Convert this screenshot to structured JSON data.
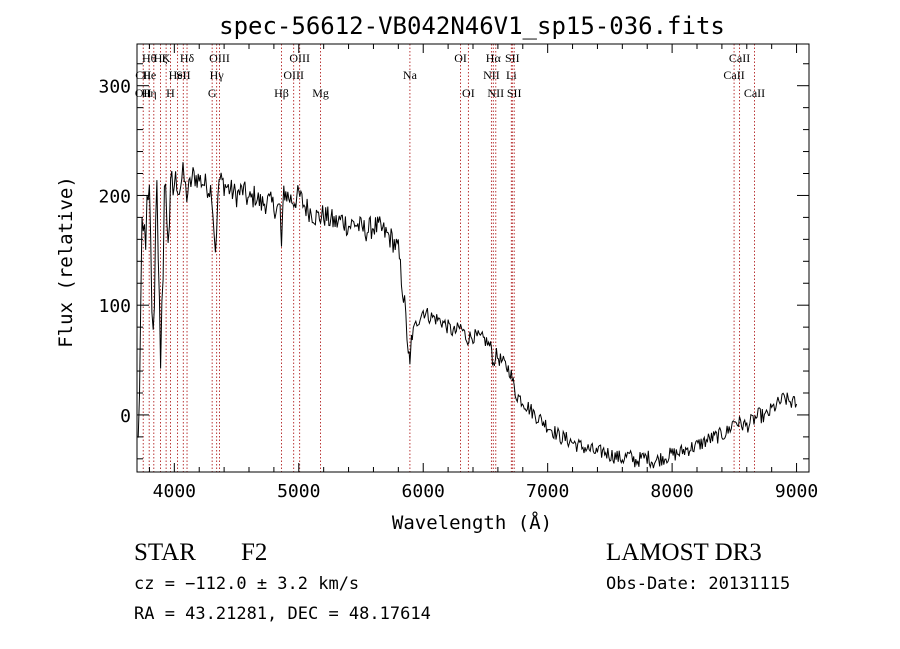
{
  "chart_data": {
    "type": "line",
    "title": "spec-56612-VB042N46V1_sp15-036.fits",
    "xlabel": "Wavelength (Å)",
    "ylabel": "Flux (relative)",
    "xlim": [
      3700,
      9100
    ],
    "ylim": [
      -52,
      338
    ],
    "xticks": [
      4000,
      5000,
      6000,
      7000,
      8000,
      9000
    ],
    "yticks": [
      0,
      100,
      200,
      300
    ],
    "x_minor_step": 200,
    "y_minor_step": 20,
    "grid": false,
    "line_color": "#000000",
    "marker_color": "#b22222",
    "series": [
      {
        "x": [
          3710,
          3740,
          3770,
          3800,
          3830,
          3860,
          3890,
          3920,
          3950,
          3980,
          4010,
          4040,
          4070,
          4100,
          4150,
          4200,
          4250,
          4300,
          4330,
          4360,
          4400,
          4450,
          4500,
          4550,
          4600,
          4650,
          4700,
          4750,
          4800,
          4850,
          4861,
          4880,
          4920,
          4960,
          5000,
          5050,
          5100,
          5150,
          5200,
          5250,
          5300,
          5350,
          5400,
          5450,
          5500,
          5550,
          5600,
          5650,
          5700,
          5750,
          5800,
          5850,
          5880,
          5893,
          5905,
          5920,
          5950,
          6000,
          6050,
          6100,
          6150,
          6200,
          6250,
          6300,
          6350,
          6400,
          6450,
          6500,
          6550,
          6563,
          6580,
          6620,
          6660,
          6700,
          6740,
          6780,
          6820,
          6860,
          6900,
          6950,
          7000,
          7050,
          7100,
          7150,
          7200,
          7250,
          7300,
          7350,
          7400,
          7450,
          7500,
          7550,
          7600,
          7650,
          7700,
          7750,
          7800,
          7850,
          7900,
          7950,
          8000,
          8050,
          8100,
          8150,
          8200,
          8250,
          8300,
          8350,
          8400,
          8450,
          8500,
          8550,
          8600,
          8650,
          8700,
          8750,
          8800,
          8850,
          8900,
          8950,
          9000
        ],
        "y": [
          -30,
          150,
          170,
          190,
          60,
          230,
          20,
          210,
          170,
          200,
          215,
          205,
          220,
          200,
          218,
          215,
          210,
          205,
          150,
          215,
          210,
          205,
          200,
          205,
          195,
          200,
          192,
          195,
          190,
          188,
          150,
          205,
          198,
          195,
          200,
          190,
          185,
          180,
          182,
          178,
          175,
          178,
          172,
          175,
          170,
          168,
          172,
          170,
          165,
          160,
          150,
          100,
          60,
          40,
          70,
          75,
          85,
          95,
          90,
          88,
          85,
          80,
          75,
          80,
          70,
          72,
          70,
          68,
          60,
          45,
          55,
          50,
          45,
          40,
          20,
          15,
          10,
          5,
          0,
          -5,
          -10,
          -15,
          -20,
          -22,
          -25,
          -28,
          -30,
          -32,
          -35,
          -33,
          -36,
          -38,
          -40,
          -37,
          -42,
          -40,
          -38,
          -43,
          -40,
          -38,
          -36,
          -35,
          -32,
          -30,
          -28,
          -25,
          -22,
          -20,
          -18,
          -15,
          -5,
          -8,
          -10,
          -5,
          0,
          -2,
          5,
          10,
          15,
          12,
          10
        ]
      }
    ],
    "lines": [
      {
        "wavelength": 3750,
        "labels": [
          {
            "text": "CII",
            "row": 2
          },
          {
            "text": "OII",
            "row": 3
          }
        ]
      },
      {
        "wavelength": 3798,
        "labels": [
          {
            "text": "Hθ",
            "row": 1
          },
          {
            "text": "He",
            "row": 2
          },
          {
            "text": "Hη",
            "row": 3
          }
        ]
      },
      {
        "wavelength": 3835,
        "labels": []
      },
      {
        "wavelength": 3889,
        "labels": [
          {
            "text": "Hζ",
            "row": 1
          }
        ]
      },
      {
        "wavelength": 3934,
        "labels": [
          {
            "text": "K",
            "row": 1
          }
        ]
      },
      {
        "wavelength": 3969,
        "labels": [
          {
            "text": "H",
            "row": 3
          }
        ]
      },
      {
        "wavelength": 4026,
        "labels": [
          {
            "text": "HeI",
            "row": 2
          }
        ]
      },
      {
        "wavelength": 4072,
        "labels": [
          {
            "text": "SII",
            "row": 2
          }
        ]
      },
      {
        "wavelength": 4102,
        "labels": [
          {
            "text": "Hδ",
            "row": 1
          }
        ]
      },
      {
        "wavelength": 4304,
        "labels": [
          {
            "text": "G",
            "row": 3
          }
        ]
      },
      {
        "wavelength": 4340,
        "labels": [
          {
            "text": "Hγ",
            "row": 2
          }
        ]
      },
      {
        "wavelength": 4363,
        "labels": [
          {
            "text": "OIII",
            "row": 1
          }
        ]
      },
      {
        "wavelength": 4861,
        "labels": [
          {
            "text": "Hβ",
            "row": 3
          }
        ]
      },
      {
        "wavelength": 4959,
        "labels": [
          {
            "text": "OIII",
            "row": 2
          }
        ]
      },
      {
        "wavelength": 5007,
        "labels": [
          {
            "text": "OIII",
            "row": 1
          }
        ]
      },
      {
        "wavelength": 5175,
        "labels": [
          {
            "text": "Mg",
            "row": 3
          }
        ]
      },
      {
        "wavelength": 5893,
        "labels": [
          {
            "text": "Na",
            "row": 2
          }
        ]
      },
      {
        "wavelength": 6300,
        "labels": [
          {
            "text": "OI",
            "row": 1
          }
        ]
      },
      {
        "wavelength": 6363,
        "labels": [
          {
            "text": "OI",
            "row": 3
          }
        ]
      },
      {
        "wavelength": 6548,
        "labels": [
          {
            "text": "NII",
            "row": 2
          }
        ]
      },
      {
        "wavelength": 6563,
        "labels": [
          {
            "text": "Hα",
            "row": 1
          }
        ]
      },
      {
        "wavelength": 6583,
        "labels": [
          {
            "text": "NII",
            "row": 3
          }
        ]
      },
      {
        "wavelength": 6708,
        "labels": [
          {
            "text": "Li",
            "row": 2
          }
        ]
      },
      {
        "wavelength": 6716,
        "labels": [
          {
            "text": "SII",
            "row": 1
          }
        ]
      },
      {
        "wavelength": 6731,
        "labels": [
          {
            "text": "SII",
            "row": 3
          }
        ]
      },
      {
        "wavelength": 8498,
        "labels": [
          {
            "text": "CaII",
            "row": 2
          }
        ]
      },
      {
        "wavelength": 8542,
        "labels": [
          {
            "text": "CaII",
            "row": 1
          }
        ]
      },
      {
        "wavelength": 8662,
        "labels": [
          {
            "text": "CaII",
            "row": 3
          }
        ]
      }
    ]
  },
  "info": {
    "object_class": "STAR",
    "subclass": "F2",
    "survey": "LAMOST DR3",
    "redshift_text": "cz = −112.0 ± 3.2 km/s",
    "obs_date": "Obs-Date: 20131115",
    "coords": "RA =  43.21281, DEC =  48.17614"
  }
}
